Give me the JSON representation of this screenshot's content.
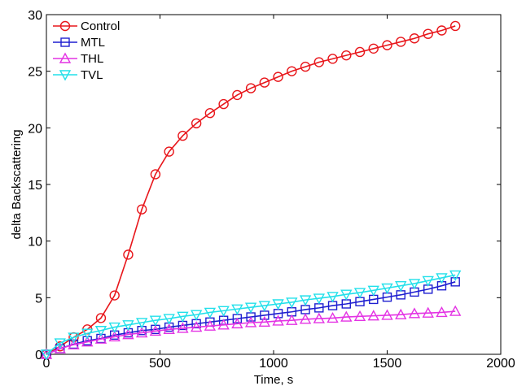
{
  "chart_data": {
    "type": "line",
    "title": "",
    "xlabel": "Time, s",
    "ylabel": "delta Backscattering",
    "xlim": [
      0,
      2000
    ],
    "ylim": [
      0,
      30
    ],
    "xticks": [
      0,
      500,
      1000,
      1500,
      2000
    ],
    "yticks": [
      0,
      5,
      10,
      15,
      20,
      25,
      30
    ],
    "grid": false,
    "legend_position": "top-left",
    "series": [
      {
        "name": "Control",
        "color": "#e8161b",
        "marker": "circle",
        "x": [
          0,
          60,
          120,
          180,
          240,
          300,
          360,
          420,
          480,
          540,
          600,
          660,
          720,
          780,
          840,
          900,
          960,
          1020,
          1080,
          1140,
          1200,
          1260,
          1320,
          1380,
          1440,
          1500,
          1560,
          1620,
          1680,
          1740,
          1800
        ],
        "y": [
          0,
          0.7,
          1.5,
          2.2,
          3.2,
          5.2,
          8.8,
          12.8,
          15.9,
          17.9,
          19.3,
          20.4,
          21.3,
          22.1,
          22.9,
          23.5,
          24.0,
          24.5,
          25.0,
          25.4,
          25.8,
          26.1,
          26.4,
          26.7,
          27.0,
          27.3,
          27.6,
          27.9,
          28.3,
          28.6,
          29.0
        ]
      },
      {
        "name": "MTL",
        "color": "#1f1fd0",
        "marker": "square",
        "x": [
          0,
          60,
          120,
          180,
          240,
          300,
          360,
          420,
          480,
          540,
          600,
          660,
          720,
          780,
          840,
          900,
          960,
          1020,
          1080,
          1140,
          1200,
          1260,
          1320,
          1380,
          1440,
          1500,
          1560,
          1620,
          1680,
          1740,
          1800
        ],
        "y": [
          0,
          0.5,
          0.9,
          1.2,
          1.4,
          1.7,
          1.9,
          2.1,
          2.2,
          2.4,
          2.55,
          2.7,
          2.85,
          3.0,
          3.15,
          3.3,
          3.45,
          3.6,
          3.75,
          3.95,
          4.1,
          4.3,
          4.45,
          4.65,
          4.85,
          5.05,
          5.25,
          5.5,
          5.75,
          6.05,
          6.4
        ]
      },
      {
        "name": "THL",
        "color": "#e433e4",
        "marker": "triangle-up",
        "x": [
          0,
          60,
          120,
          180,
          240,
          300,
          360,
          420,
          480,
          540,
          600,
          660,
          720,
          780,
          840,
          900,
          960,
          1020,
          1080,
          1140,
          1200,
          1260,
          1320,
          1380,
          1440,
          1500,
          1560,
          1620,
          1680,
          1740,
          1800
        ],
        "y": [
          0,
          0.5,
          0.85,
          1.1,
          1.35,
          1.55,
          1.75,
          1.9,
          2.05,
          2.2,
          2.3,
          2.4,
          2.5,
          2.6,
          2.7,
          2.8,
          2.85,
          2.95,
          3.0,
          3.1,
          3.15,
          3.2,
          3.3,
          3.35,
          3.4,
          3.45,
          3.5,
          3.6,
          3.65,
          3.7,
          3.8
        ]
      },
      {
        "name": "TVL",
        "color": "#22e0ea",
        "marker": "triangle-down",
        "x": [
          0,
          60,
          120,
          180,
          240,
          300,
          360,
          420,
          480,
          540,
          600,
          660,
          720,
          780,
          840,
          900,
          960,
          1020,
          1080,
          1140,
          1200,
          1260,
          1320,
          1380,
          1440,
          1500,
          1560,
          1620,
          1680,
          1740,
          1800
        ],
        "y": [
          0,
          1.0,
          1.5,
          1.85,
          2.1,
          2.4,
          2.6,
          2.8,
          3.0,
          3.15,
          3.35,
          3.5,
          3.7,
          3.85,
          4.0,
          4.15,
          4.3,
          4.45,
          4.6,
          4.8,
          4.95,
          5.1,
          5.3,
          5.45,
          5.65,
          5.85,
          6.05,
          6.25,
          6.5,
          6.75,
          7.0
        ]
      }
    ]
  }
}
